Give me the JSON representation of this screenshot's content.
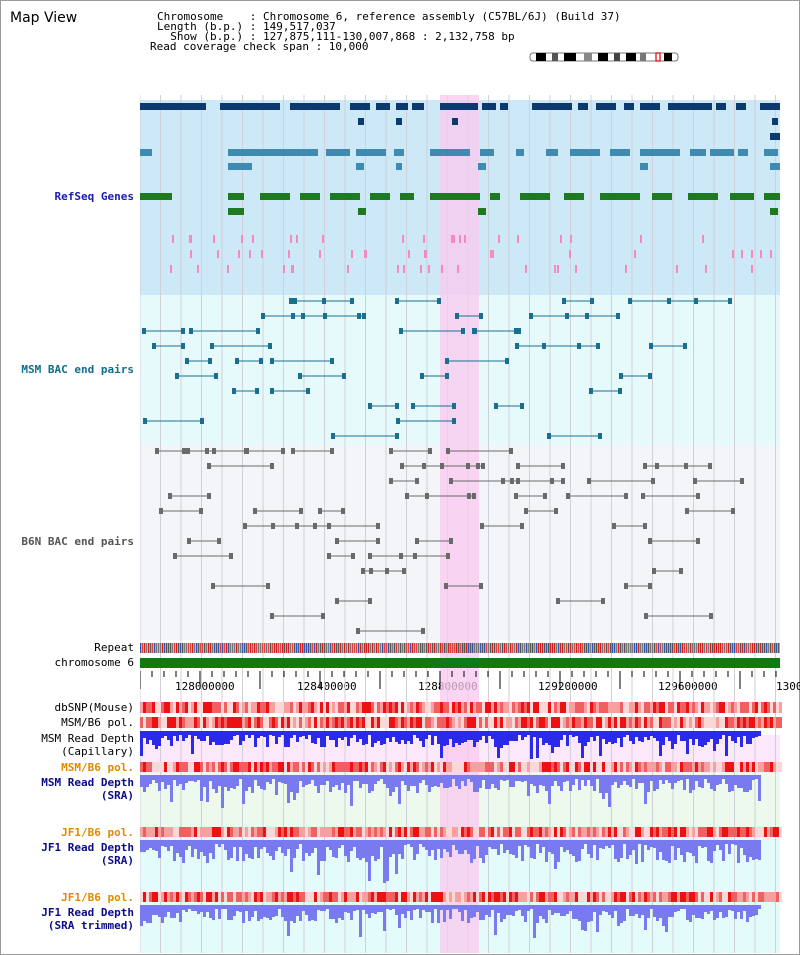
{
  "title": "Map View",
  "info": {
    "line1": "Chromosome    : Chromosome 6, reference assembly (C57BL/6J) (Build 37)",
    "line2": "Length (b.p.) : 149,517,037",
    "line3": "  Show (b.p.) : 127,875,111-130,007,868 : 2,132,758 bp",
    "line4": "Read coverage check span : 10,000"
  },
  "tracks": {
    "refseq": "RefSeq Genes",
    "msm_bac": "MSM BAC end pairs",
    "b6n_bac": "B6N BAC end pairs",
    "repeat": "Repeat",
    "chromosome": "chromosome 6",
    "dbsnp": "dbSNP(Mouse)",
    "msm_b6_pol_1": "MSM/B6 pol.",
    "msm_read_depth_cap": "MSM Read Depth\n(Capillary)",
    "msm_b6_pol_2": "MSM/B6 pol.",
    "msm_read_depth_sra": "MSM Read Depth\n(SRA)",
    "jf1_b6_pol_1": "JF1/B6 pol.",
    "jf1_read_depth_sra": "JF1 Read Depth\n(SRA)",
    "jf1_b6_pol_2": "JF1/B6 pol.",
    "jf1_read_depth_trim": "JF1 Read Depth\n(SRA trimmed)"
  },
  "axis_ticks": [
    "128000000",
    "128400000",
    "128800000",
    "129200000",
    "129600000",
    "1300"
  ],
  "colors": {
    "highlight": "#f9c8ef",
    "refseq_bg": "#cde9f7",
    "msm_bg": "#e6fafb",
    "b6n_bg": "#f4f5f9",
    "gene_navy": "#0c3a6e",
    "gene_teal": "#3e8ab1",
    "gene_green": "#1e7a1e",
    "chromosome_bar": "#0f7a0f",
    "snp_red": "#ee3333",
    "depth_blue": "#2a2ae8",
    "depth_light": "#7a7af0"
  }
}
